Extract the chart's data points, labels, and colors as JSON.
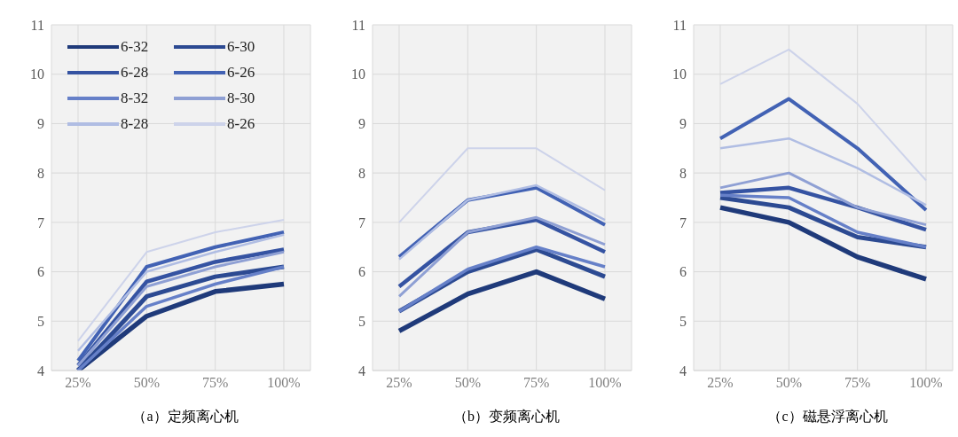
{
  "chart_data": [
    {
      "type": "line",
      "xlabel": "（a）定频离心机",
      "categories": [
        "25%",
        "50%",
        "75%",
        "100%"
      ],
      "ylim": [
        4,
        11
      ],
      "yticks": [
        4,
        5,
        6,
        7,
        8,
        9,
        10,
        11
      ],
      "grid": true,
      "legend": "top",
      "marker": "none",
      "line_style": "solid",
      "series": [
        {
          "name": "6-32",
          "color": "#1f3a7a",
          "values": [
            4.0,
            5.1,
            5.6,
            5.75
          ]
        },
        {
          "name": "6-30",
          "color": "#2c4a92",
          "values": [
            4.0,
            5.5,
            5.9,
            6.1
          ]
        },
        {
          "name": "6-28",
          "color": "#3553a2",
          "values": [
            4.1,
            5.8,
            6.2,
            6.45
          ]
        },
        {
          "name": "6-26",
          "color": "#4262b4",
          "values": [
            4.2,
            6.1,
            6.5,
            6.8
          ]
        },
        {
          "name": "8-32",
          "color": "#6680c8",
          "values": [
            4.0,
            5.3,
            5.75,
            6.1
          ]
        },
        {
          "name": "8-30",
          "color": "#8fa0d4",
          "values": [
            4.1,
            5.7,
            6.1,
            6.4
          ]
        },
        {
          "name": "8-28",
          "color": "#b0bde3",
          "values": [
            4.4,
            6.0,
            6.4,
            6.75
          ]
        },
        {
          "name": "8-26",
          "color": "#cdd3ea",
          "values": [
            4.6,
            6.4,
            6.8,
            7.05
          ]
        }
      ]
    },
    {
      "type": "line",
      "xlabel": "（b）变频离心机",
      "categories": [
        "25%",
        "50%",
        "75%",
        "100%"
      ],
      "ylim": [
        4,
        11
      ],
      "yticks": [
        4,
        5,
        6,
        7,
        8,
        9,
        10,
        11
      ],
      "grid": true,
      "marker": "none",
      "line_style": "solid",
      "series": [
        {
          "color": "#1f3a7a",
          "values": [
            4.8,
            5.55,
            6.0,
            5.45
          ]
        },
        {
          "color": "#2c4a92",
          "values": [
            5.2,
            6.0,
            6.45,
            5.9
          ]
        },
        {
          "color": "#3553a2",
          "values": [
            5.7,
            6.8,
            7.05,
            6.4
          ]
        },
        {
          "color": "#4262b4",
          "values": [
            6.3,
            7.45,
            7.7,
            6.95
          ]
        },
        {
          "color": "#6680c8",
          "values": [
            5.2,
            6.05,
            6.5,
            6.1
          ]
        },
        {
          "color": "#8fa0d4",
          "values": [
            5.5,
            6.8,
            7.1,
            6.55
          ]
        },
        {
          "color": "#b0bde3",
          "values": [
            6.25,
            7.45,
            7.75,
            7.05
          ]
        },
        {
          "color": "#cdd3ea",
          "values": [
            7.0,
            8.5,
            8.5,
            7.65
          ]
        }
      ]
    },
    {
      "type": "line",
      "xlabel": "（c）磁悬浮离心机",
      "categories": [
        "25%",
        "50%",
        "75%",
        "100%"
      ],
      "ylim": [
        4,
        11
      ],
      "yticks": [
        4,
        5,
        6,
        7,
        8,
        9,
        10,
        11
      ],
      "grid": true,
      "marker": "none",
      "line_style": "solid",
      "series": [
        {
          "color": "#1f3a7a",
          "values": [
            7.3,
            7.0,
            6.3,
            5.85
          ]
        },
        {
          "color": "#2c4a92",
          "values": [
            7.5,
            7.3,
            6.7,
            6.5
          ]
        },
        {
          "color": "#3553a2",
          "values": [
            7.6,
            7.7,
            7.3,
            6.85
          ]
        },
        {
          "color": "#4262b4",
          "values": [
            8.7,
            9.5,
            8.5,
            7.25
          ]
        },
        {
          "color": "#6680c8",
          "values": [
            7.55,
            7.5,
            6.8,
            6.5
          ]
        },
        {
          "color": "#8fa0d4",
          "values": [
            7.7,
            8.0,
            7.3,
            6.95
          ]
        },
        {
          "color": "#b0bde3",
          "values": [
            8.5,
            8.7,
            8.1,
            7.35
          ]
        },
        {
          "color": "#cdd3ea",
          "values": [
            9.8,
            10.5,
            9.4,
            7.85
          ]
        }
      ]
    }
  ]
}
